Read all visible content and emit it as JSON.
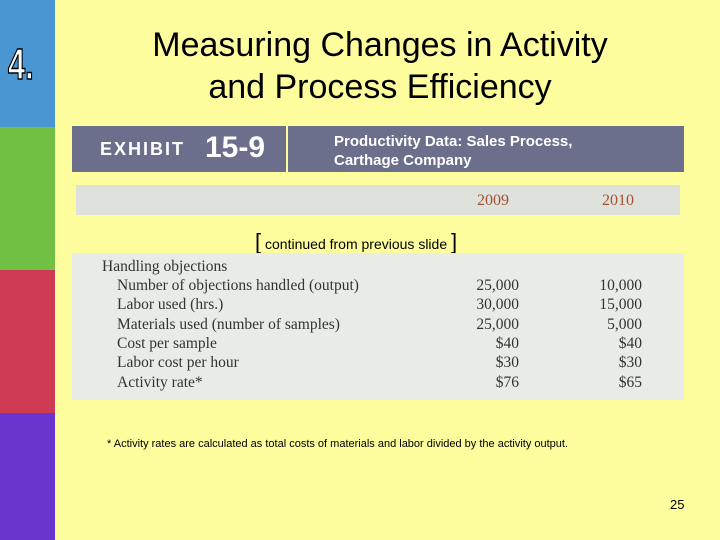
{
  "slide": {
    "number_label": "4.",
    "title_lines": [
      "Measuring Changes in Activity",
      "and Process Efficiency"
    ],
    "exhibit": {
      "word": "EXHIBIT",
      "number": "15-9",
      "caption_lines": [
        "Productivity Data: Sales Process,",
        "Carthage Company"
      ]
    },
    "table": {
      "columns": [
        "2009",
        "2010"
      ],
      "continued_note": "continued from previous slide",
      "section": "Handling objections",
      "rows": [
        [
          "Number of objections handled (output)",
          "25,000",
          "10,000"
        ],
        [
          "Labor used (hrs.)",
          "30,000",
          "15,000"
        ],
        [
          "Materials used (number of samples)",
          "25,000",
          "5,000"
        ],
        [
          "Cost per sample",
          "$40",
          "$40"
        ],
        [
          "Labor cost per hour",
          "$30",
          "$30"
        ],
        [
          "Activity rate*",
          "$76",
          "$65"
        ]
      ]
    },
    "footnote": "* Activity rates are calculated as total costs of materials and labor divided by the activity output.",
    "page_number": "25"
  }
}
